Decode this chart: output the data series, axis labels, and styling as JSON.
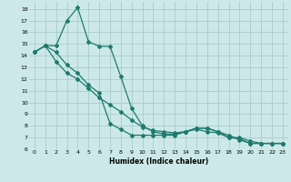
{
  "xlabel": "Humidex (Indice chaleur)",
  "bg_color": "#cce8e8",
  "grid_color": "#aacccc",
  "line_color": "#1e7b6e",
  "xlim": [
    -0.5,
    23.5
  ],
  "ylim": [
    6,
    18.6
  ],
  "yticks": [
    6,
    7,
    8,
    9,
    10,
    11,
    12,
    13,
    14,
    15,
    16,
    17,
    18
  ],
  "xticks": [
    0,
    1,
    2,
    3,
    4,
    5,
    6,
    7,
    8,
    9,
    10,
    11,
    12,
    13,
    14,
    15,
    16,
    17,
    18,
    19,
    20,
    21,
    22,
    23
  ],
  "line1_x": [
    0,
    1,
    2,
    3,
    4,
    5,
    6,
    7,
    8,
    9,
    10,
    11,
    12,
    13,
    14,
    15,
    16,
    17,
    18,
    19,
    20,
    21,
    22,
    23
  ],
  "line1_y": [
    14.3,
    14.85,
    13.5,
    12.5,
    12.0,
    11.2,
    10.4,
    9.8,
    9.2,
    8.5,
    7.9,
    7.6,
    7.5,
    7.4,
    7.5,
    7.7,
    7.5,
    7.4,
    7.0,
    7.0,
    6.7,
    6.5,
    6.5,
    6.5
  ],
  "line2_x": [
    0,
    1,
    2,
    3,
    4,
    5,
    6,
    7,
    8,
    9,
    10,
    11,
    12,
    13,
    14,
    15,
    16,
    17,
    18,
    19,
    20,
    21,
    22,
    23
  ],
  "line2_y": [
    14.3,
    14.85,
    14.85,
    17.0,
    18.1,
    15.2,
    14.8,
    14.8,
    12.2,
    9.5,
    8.0,
    7.5,
    7.3,
    7.3,
    7.5,
    7.8,
    7.8,
    7.5,
    7.0,
    6.9,
    6.5,
    6.5,
    6.5,
    6.5
  ],
  "line3_x": [
    0,
    1,
    2,
    3,
    4,
    5,
    6,
    7,
    8,
    9,
    10,
    11,
    12,
    13,
    14,
    15,
    16,
    17,
    18,
    19,
    20,
    21,
    22,
    23
  ],
  "line3_y": [
    14.3,
    14.85,
    14.3,
    13.2,
    12.5,
    11.5,
    10.8,
    8.2,
    7.7,
    7.2,
    7.2,
    7.2,
    7.2,
    7.2,
    7.5,
    7.8,
    7.8,
    7.5,
    7.2,
    6.8,
    6.5,
    6.5,
    6.5,
    6.5
  ]
}
